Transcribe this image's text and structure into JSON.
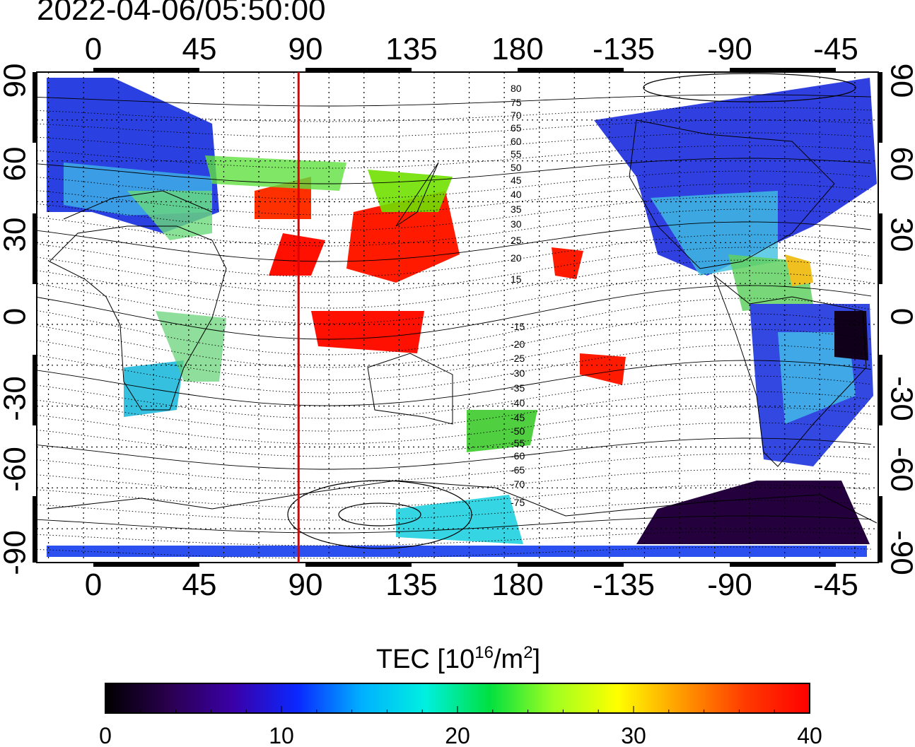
{
  "timestamp": "2022-04-06/05:50:00",
  "map": {
    "lon_ticks": [
      "0",
      "45",
      "90",
      "135",
      "180",
      "-135",
      "-90",
      "-45"
    ],
    "lat_ticks": [
      "90",
      "60",
      "30",
      "0",
      "-30",
      "-60",
      "-90"
    ],
    "marker_longitude": 92,
    "marker_color": "#e00000",
    "magnetic_latitude_labels": [
      "80",
      "75",
      "70",
      "65",
      "60",
      "55",
      "50",
      "45",
      "40",
      "35",
      "30",
      "25",
      "20",
      "15",
      "-15",
      "-20",
      "-25",
      "-30",
      "-35",
      "-40",
      "-45",
      "-50",
      "-55",
      "-60",
      "-65",
      "-70",
      "-75"
    ]
  },
  "colorbar": {
    "title_prefix": "TEC  [10",
    "title_exp1": "16",
    "title_mid": "/m",
    "title_exp2": "2",
    "title_suffix": "]",
    "min": 0,
    "max": 40,
    "tick_labels": [
      "0",
      "10",
      "20",
      "30",
      "40"
    ],
    "colormap": [
      "#000000",
      "#2a004f",
      "#3a00a8",
      "#0a28ff",
      "#00b0ff",
      "#00f0e0",
      "#00e040",
      "#a0ff20",
      "#ffff00",
      "#ff9a00",
      "#ff3a00",
      "#ff0000"
    ]
  }
}
